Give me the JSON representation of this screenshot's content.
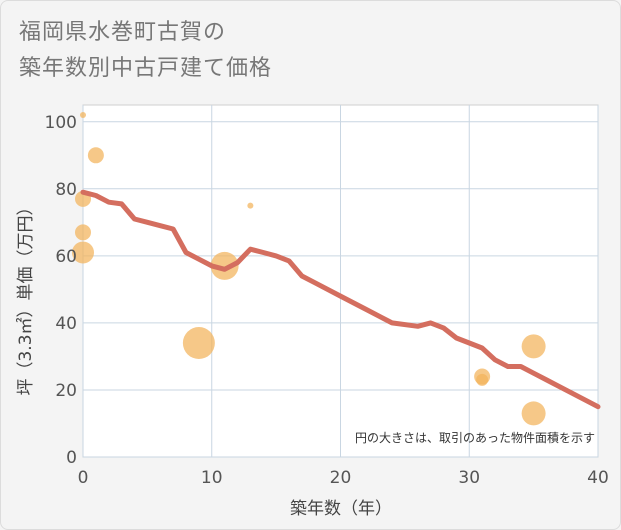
{
  "title_line1": "福岡県水巻町古賀の",
  "title_line2": "築年数別中古戸建て価格",
  "chart_data": {
    "type": "scatter+line",
    "xlabel": "築年数（年）",
    "ylabel": "坪（3.3㎡）単価（万円）",
    "xlim": [
      0,
      40
    ],
    "ylim": [
      0,
      105
    ],
    "xticks": [
      0,
      10,
      20,
      30,
      40
    ],
    "yticks": [
      0,
      20,
      40,
      60,
      80,
      100
    ],
    "grid": true,
    "note": "円の大きさは、取引のあった物件面積を示す",
    "colors": {
      "bubble": "#f2b35a",
      "line": "#d46e5f"
    },
    "points": [
      {
        "x": 0,
        "y": 102,
        "size": 3
      },
      {
        "x": 1,
        "y": 90,
        "size": 8
      },
      {
        "x": 0,
        "y": 77,
        "size": 8
      },
      {
        "x": 0,
        "y": 67,
        "size": 8
      },
      {
        "x": 0,
        "y": 61,
        "size": 11
      },
      {
        "x": 9,
        "y": 34,
        "size": 16
      },
      {
        "x": 11,
        "y": 57,
        "size": 14
      },
      {
        "x": 13,
        "y": 75,
        "size": 3
      },
      {
        "x": 31,
        "y": 24,
        "size": 8
      },
      {
        "x": 31,
        "y": 23,
        "size": 6
      },
      {
        "x": 35,
        "y": 33,
        "size": 12
      },
      {
        "x": 35,
        "y": 13,
        "size": 12
      }
    ],
    "trend": [
      [
        0,
        79
      ],
      [
        1,
        78
      ],
      [
        2,
        76
      ],
      [
        3,
        75.5
      ],
      [
        4,
        71
      ],
      [
        5,
        70
      ],
      [
        6,
        69
      ],
      [
        7,
        68
      ],
      [
        8,
        61
      ],
      [
        9,
        59
      ],
      [
        10,
        57
      ],
      [
        11,
        56
      ],
      [
        12,
        58
      ],
      [
        13,
        62
      ],
      [
        14,
        61
      ],
      [
        15,
        60
      ],
      [
        16,
        58.5
      ],
      [
        17,
        54
      ],
      [
        18,
        52
      ],
      [
        20,
        48
      ],
      [
        22,
        44
      ],
      [
        24,
        40
      ],
      [
        26,
        39
      ],
      [
        27,
        40
      ],
      [
        28,
        38.5
      ],
      [
        29,
        35.5
      ],
      [
        30,
        34
      ],
      [
        31,
        32.5
      ],
      [
        32,
        29
      ],
      [
        33,
        27
      ],
      [
        34,
        27
      ],
      [
        35,
        25
      ],
      [
        36,
        23
      ],
      [
        38,
        19
      ],
      [
        40,
        15
      ]
    ]
  }
}
